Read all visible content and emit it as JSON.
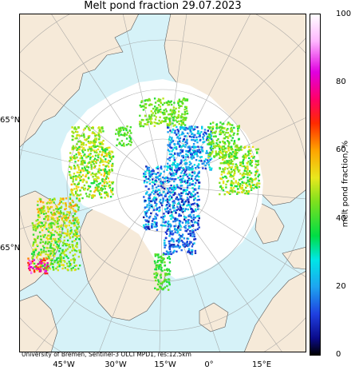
{
  "title": "Melt pond fraction 29.07.2023",
  "credit": "University of Bremen, Sentinel-3 OLCI MPD1, res:12.5km",
  "lat_labels": [
    "65°N",
    "65°N"
  ],
  "lon_labels": [
    "45°W",
    "30°W",
    "15°W",
    "0°",
    "15°E"
  ],
  "colorbar": {
    "label": "melt pond fraction, %",
    "ticks": [
      "100",
      "80",
      "60",
      "40",
      "20",
      "0"
    ],
    "range": [
      0,
      100
    ],
    "stops": [
      {
        "v": 0,
        "c": "#000000"
      },
      {
        "v": 5,
        "c": "#0b0b8a"
      },
      {
        "v": 12,
        "c": "#1f3fe0"
      },
      {
        "v": 20,
        "c": "#1ea4f0"
      },
      {
        "v": 28,
        "c": "#00e6e6"
      },
      {
        "v": 35,
        "c": "#00dd44"
      },
      {
        "v": 45,
        "c": "#7ee01e"
      },
      {
        "v": 52,
        "c": "#e8e81e"
      },
      {
        "v": 60,
        "c": "#ffa400"
      },
      {
        "v": 68,
        "c": "#ff2a00"
      },
      {
        "v": 75,
        "c": "#ff0066"
      },
      {
        "v": 83,
        "c": "#e000e0"
      },
      {
        "v": 92,
        "c": "#ffb6ff"
      },
      {
        "v": 100,
        "c": "#ffffff"
      }
    ]
  },
  "colors": {
    "land": "#f6ead9",
    "ocean": "#d6f2f8",
    "sea_ice": "#ffffff",
    "coast": "#5a5a5a",
    "grid": "#9a9a9a"
  }
}
